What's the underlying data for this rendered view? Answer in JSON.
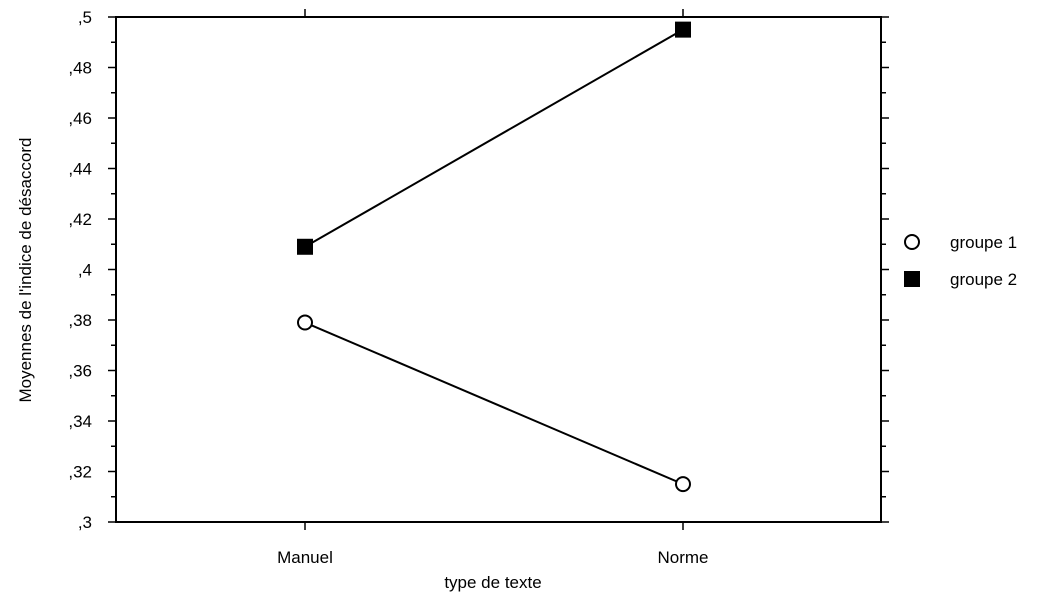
{
  "chart_data": {
    "type": "line",
    "title": "",
    "xlabel": "type de texte",
    "ylabel": "Moyennes de l'indice de désaccord",
    "categories": [
      "Manuel",
      "Norme"
    ],
    "ylim": [
      0.3,
      0.5
    ],
    "yticks": [
      {
        "value": 0.3,
        "label": ",3"
      },
      {
        "value": 0.32,
        "label": ",32"
      },
      {
        "value": 0.34,
        "label": ",34"
      },
      {
        "value": 0.36,
        "label": ",36"
      },
      {
        "value": 0.38,
        "label": ",38"
      },
      {
        "value": 0.4,
        "label": ",4"
      },
      {
        "value": 0.42,
        "label": ",42"
      },
      {
        "value": 0.44,
        "label": ",44"
      },
      {
        "value": 0.46,
        "label": ",46"
      },
      {
        "value": 0.48,
        "label": ",48"
      },
      {
        "value": 0.5,
        "label": ",5"
      }
    ],
    "series": [
      {
        "name": "groupe 1",
        "marker": "circle-open",
        "values": [
          0.379,
          0.315
        ]
      },
      {
        "name": "groupe 2",
        "marker": "square-filled",
        "values": [
          0.409,
          0.495
        ]
      }
    ],
    "grid": false,
    "legend": "right",
    "colors": {
      "line": "#000000",
      "background": "#ffffff"
    }
  }
}
